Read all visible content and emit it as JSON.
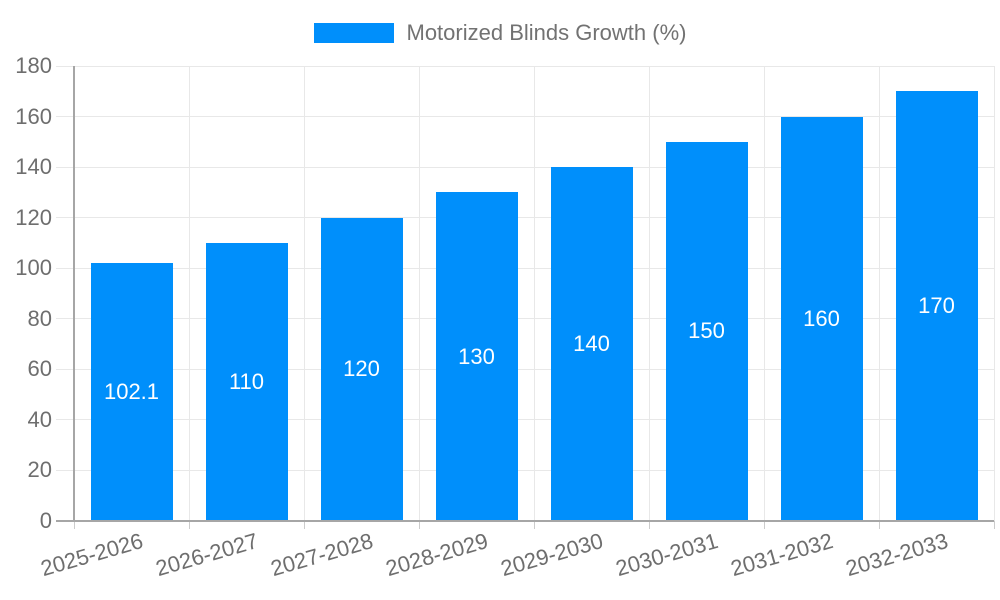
{
  "chart_data": {
    "type": "bar",
    "title": "Motorized Blinds Growth (%)",
    "series": [
      {
        "name": "Motorized Blinds Growth (%)",
        "values": [
          102.1,
          110,
          120,
          130,
          140,
          150,
          160,
          170
        ],
        "value_labels": [
          "102.1",
          "110",
          "120",
          "130",
          "140",
          "150",
          "160",
          "170"
        ]
      }
    ],
    "categories": [
      "2025-2026",
      "2026-2027",
      "2027-2028",
      "2028-2029",
      "2029-2030",
      "2030-2031",
      "2031-2032",
      "2032-2033"
    ],
    "xlabel": "",
    "ylabel": "",
    "ylim": [
      0,
      180
    ],
    "ytick_step": 20,
    "ytick_labels": [
      "0",
      "20",
      "40",
      "60",
      "80",
      "100",
      "120",
      "140",
      "160",
      "180"
    ],
    "grid": true,
    "legend_position": "top"
  },
  "colors": {
    "bar": "#008FFB",
    "grid": "#e8e8e8",
    "axis": "#a6a6a6",
    "tick": "#cccccc",
    "axis_label": "#6e6e6e",
    "legend_text": "#727272",
    "value_label": "#ffffff"
  }
}
